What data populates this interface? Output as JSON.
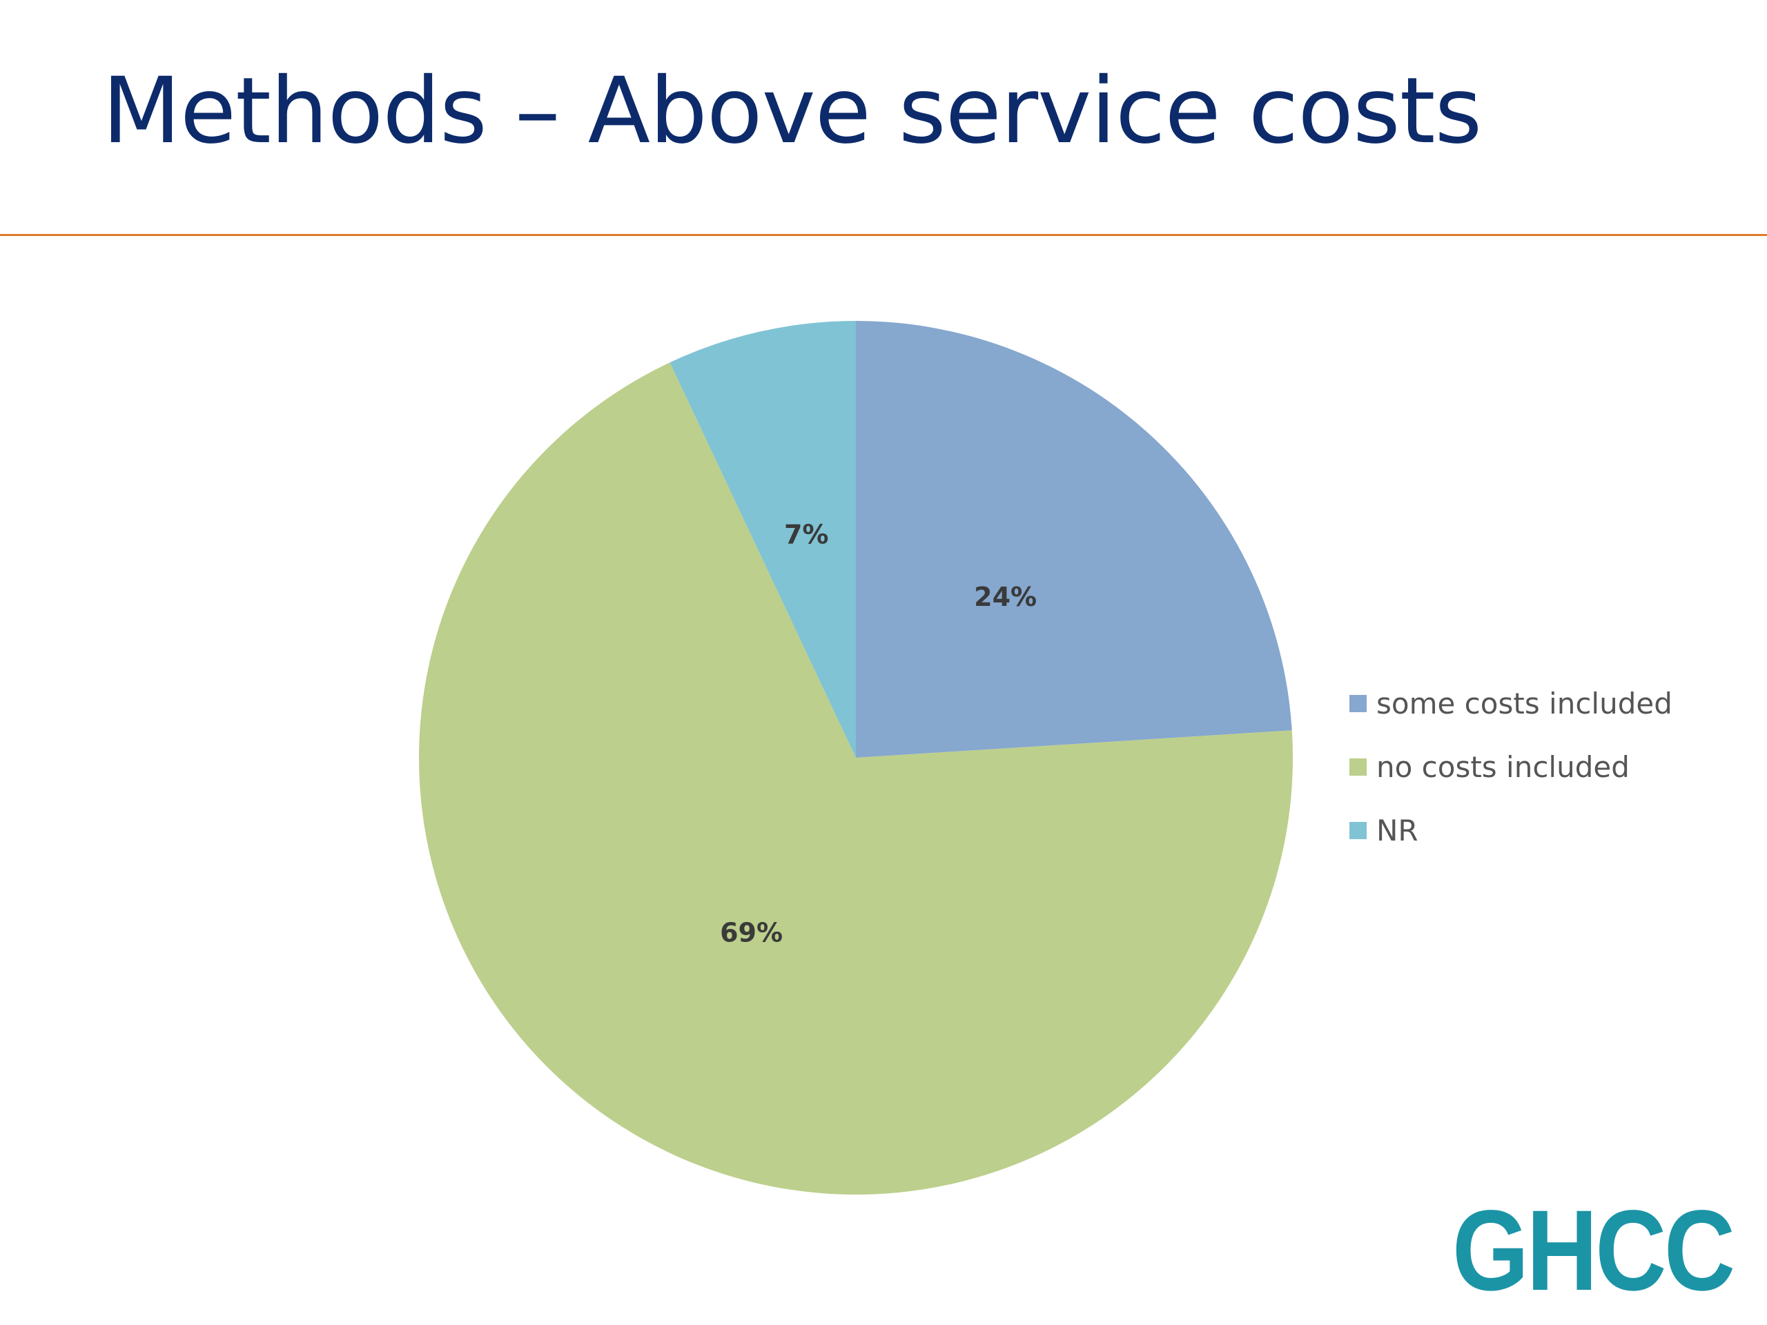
{
  "slide": {
    "title": "Methods – Above service costs"
  },
  "logo": {
    "text": "GHCC",
    "color": "#1b94a6"
  },
  "colors": {
    "title": "#0d2b6b",
    "rule": "#e07b2a"
  },
  "chart_data": {
    "type": "pie",
    "title": "",
    "categories": [
      "some costs included",
      "no costs included",
      "NR"
    ],
    "values": [
      24,
      69,
      7
    ],
    "labels": [
      "24%",
      "69%",
      "7%"
    ],
    "colors": [
      "#86a7ce",
      "#bccf8c",
      "#80c3d4"
    ],
    "start_angle_deg": 0,
    "direction": "clockwise",
    "legend": {
      "position": "right",
      "entries": [
        "some costs included",
        "no costs included",
        "NR"
      ]
    }
  }
}
